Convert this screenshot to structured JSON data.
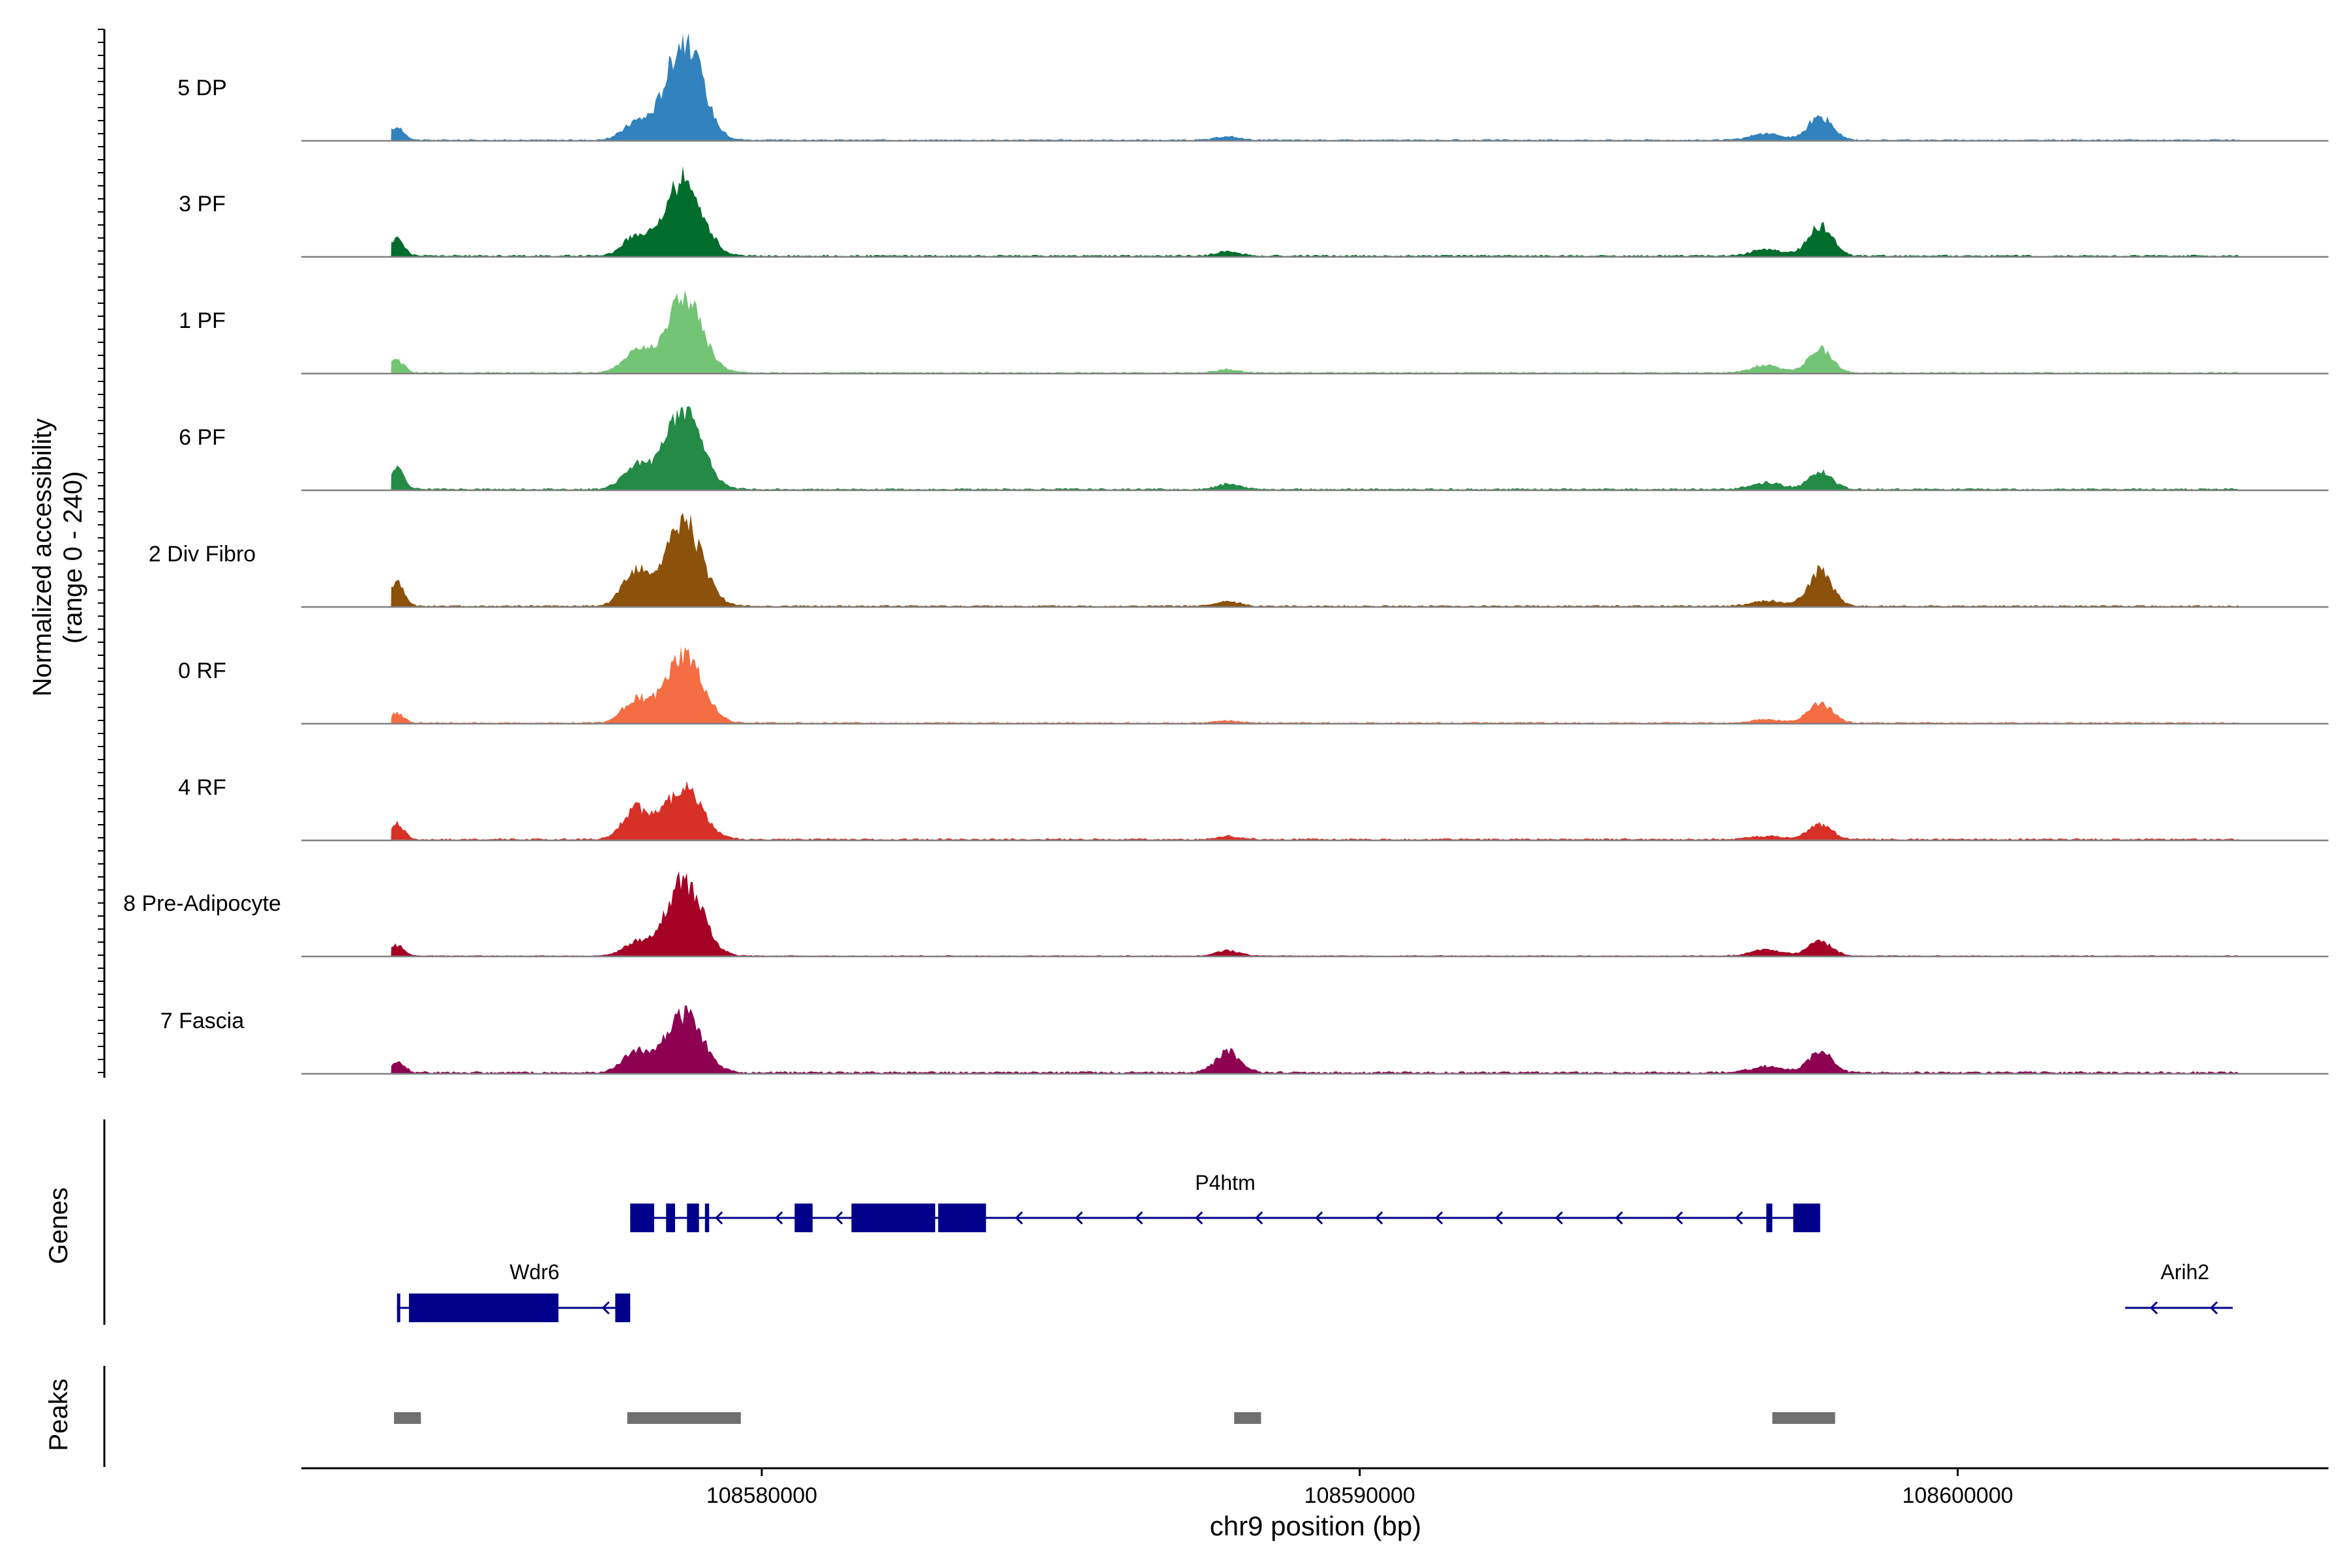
{
  "chart_data": {
    "type": "area",
    "title": "",
    "xlabel": "chr9 position (bp)",
    "ylabel": "Normalized accessibility",
    "ylabel_range": "(range 0 - 240)",
    "y_range": [
      0,
      240
    ],
    "x_range": [
      108572300,
      108606200
    ],
    "x_ticks": [
      {
        "value": 108580000,
        "label": "108580000"
      },
      {
        "value": 108590000,
        "label": "108590000"
      },
      {
        "value": 108600000,
        "label": "108600000"
      }
    ],
    "track_labels": {
      "genes": "Genes",
      "peaks": "Peaks"
    },
    "peak_centers": [
      108573900,
      108577900,
      108578700,
      108587800,
      108596800,
      108597700
    ],
    "series": [
      {
        "name": "5 DP",
        "color": "#3182bd",
        "heights": [
          0.12,
          0.16,
          0.95,
          0.03,
          0.06,
          0.22
        ]
      },
      {
        "name": "3 PF",
        "color": "#006d2c",
        "heights": [
          0.17,
          0.18,
          0.72,
          0.04,
          0.06,
          0.28
        ]
      },
      {
        "name": "1 PF",
        "color": "#74c476",
        "heights": [
          0.12,
          0.2,
          0.7,
          0.03,
          0.07,
          0.22
        ]
      },
      {
        "name": "6 PF",
        "color": "#238b45",
        "heights": [
          0.2,
          0.22,
          0.75,
          0.05,
          0.06,
          0.16
        ]
      },
      {
        "name": "2 Div Fibro",
        "color": "#8c510a",
        "heights": [
          0.22,
          0.33,
          0.78,
          0.04,
          0.05,
          0.33
        ]
      },
      {
        "name": "0 RF",
        "color": "#f46d43",
        "heights": [
          0.09,
          0.22,
          0.63,
          0.02,
          0.03,
          0.18
        ]
      },
      {
        "name": "4 RF",
        "color": "#d73027",
        "heights": [
          0.14,
          0.28,
          0.5,
          0.03,
          0.03,
          0.14
        ]
      },
      {
        "name": "8 Pre-Adipocyte",
        "color": "#a50026",
        "heights": [
          0.1,
          0.12,
          0.7,
          0.05,
          0.06,
          0.14
        ]
      },
      {
        "name": "7 Fascia",
        "color": "#8e0152",
        "heights": [
          0.1,
          0.2,
          0.55,
          0.2,
          0.06,
          0.2
        ]
      }
    ],
    "genes": [
      {
        "name": "P4htm",
        "strand": "-",
        "start": 108577800,
        "end": 108597700,
        "exons": [
          [
            108577800,
            108578200
          ],
          [
            108578400,
            108578550
          ],
          [
            108578750,
            108578950
          ],
          [
            108579050,
            108579120
          ],
          [
            108580550,
            108580850
          ],
          [
            108581500,
            108582900
          ],
          [
            108582950,
            108583750
          ],
          [
            108596800,
            108596900
          ],
          [
            108597250,
            108597700
          ]
        ]
      },
      {
        "name": "Wdr6",
        "strand": "-",
        "start": 108573900,
        "end": 108577800,
        "exons": [
          [
            108573900,
            108573950
          ],
          [
            108574100,
            108576600
          ],
          [
            108577550,
            108577800
          ]
        ]
      },
      {
        "name": "Arih2",
        "strand": "-",
        "start": 108602800,
        "end": 108604600,
        "exons": []
      }
    ],
    "peaks": [
      [
        108573850,
        108574300
      ],
      [
        108577750,
        108579650
      ],
      [
        108587900,
        108588350
      ],
      [
        108596900,
        108597950
      ]
    ]
  }
}
